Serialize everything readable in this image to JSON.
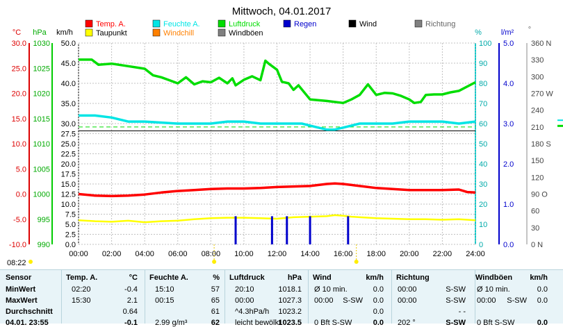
{
  "title": "Mittwoch, 04.01.2017",
  "time_now": "08:22",
  "legend": [
    {
      "label": "Temp. A.",
      "color": "#ff0000"
    },
    {
      "label": "Feuchte A.",
      "color": "#00e5e5"
    },
    {
      "label": "Luftdruck",
      "color": "#00dd00"
    },
    {
      "label": "Regen",
      "color": "#0000cc"
    },
    {
      "label": "Wind",
      "color": "#000000"
    },
    {
      "label": "Richtung",
      "color": "#808080"
    },
    {
      "label": "Taupunkt",
      "color": "#ffff00"
    },
    {
      "label": "Windchill",
      "color": "#ff8000"
    },
    {
      "label": "Windböen",
      "color": "#808080"
    }
  ],
  "axis_units": {
    "temp": "°C",
    "hpa": "hPa",
    "kmh": "km/h",
    "pct": "%",
    "rain": "l/m²",
    "dir": "°"
  },
  "chart_data": {
    "type": "line",
    "x_range": [
      "00:00",
      "24:00"
    ],
    "x_ticks": [
      "00:00",
      "02:00",
      "04:00",
      "06:00",
      "08:00",
      "10:00",
      "12:00",
      "14:00",
      "16:00",
      "18:00",
      "20:00",
      "22:00",
      "24:00"
    ],
    "axes": {
      "temp": {
        "unit": "°C",
        "range": [
          -10,
          30
        ],
        "ticks": [
          "30.0",
          "25.0",
          "20.0",
          "15.0",
          "10.0",
          "5.0",
          "0.0",
          "-5.0",
          "-10.0"
        ]
      },
      "pressure": {
        "unit": "hPa",
        "range": [
          990,
          1030
        ],
        "ticks": [
          "1030",
          "1025",
          "1020",
          "1015",
          "1010",
          "1005",
          "1000",
          "995",
          "990"
        ]
      },
      "wind": {
        "unit": "km/h",
        "range": [
          0,
          50
        ],
        "ticks": [
          "50.0",
          "45.0",
          "40.0",
          "35.0",
          "30.0",
          "27.5",
          "25.0",
          "22.5",
          "20.0",
          "17.5",
          "15.0",
          "12.5",
          "10.0",
          "7.5",
          "5.0",
          "2.5",
          "0.0"
        ]
      },
      "humidity": {
        "unit": "%",
        "range": [
          0,
          100
        ],
        "ticks": [
          "100",
          "90",
          "80",
          "70",
          "60",
          "50",
          "40",
          "30",
          "20",
          "10",
          "0"
        ]
      },
      "rain": {
        "unit": "l/m²",
        "range": [
          0,
          5
        ],
        "ticks": [
          "5.0",
          "4.0",
          "3.0",
          "2.0",
          "1.0",
          "0.0"
        ]
      },
      "direction": {
        "unit": "°",
        "range": [
          0,
          360
        ],
        "ticks": [
          "360 N",
          "330",
          "300",
          "270 W",
          "240",
          "210",
          "180 S",
          "150",
          "120",
          "90 O",
          "60",
          "30",
          "0 N"
        ]
      }
    },
    "series": [
      {
        "name": "Luftdruck",
        "axis": "pressure",
        "color": "#00dd00",
        "x": [
          0,
          0.8,
          1.2,
          2,
          3,
          4,
          4.5,
          5,
          5.5,
          6,
          6.5,
          7,
          7.5,
          8,
          8.5,
          9,
          9.3,
          9.5,
          10,
          10.5,
          11,
          11.3,
          11.5,
          12,
          12.3,
          12.7,
          13,
          13.3,
          14,
          15,
          16,
          16.5,
          17,
          17.5,
          18,
          18.5,
          19,
          19.5,
          20,
          20.3,
          20.7,
          21,
          21.5,
          22,
          22.5,
          23,
          24
        ],
        "y": [
          1026.7,
          1026.7,
          1025.7,
          1025.9,
          1025.4,
          1024.9,
          1023.6,
          1023.2,
          1022.6,
          1022.0,
          1023.2,
          1021.8,
          1022.4,
          1022.2,
          1023.1,
          1022.0,
          1023.0,
          1021.6,
          1022.7,
          1023.4,
          1022.6,
          1026.5,
          1025.9,
          1024.7,
          1022.3,
          1022.0,
          1020.7,
          1021.6,
          1018.8,
          1018.5,
          1018.1,
          1018.8,
          1019.7,
          1021.8,
          1019.7,
          1020.1,
          1020.0,
          1019.5,
          1018.8,
          1018.1,
          1018.3,
          1019.7,
          1019.8,
          1019.8,
          1020.2,
          1020.5,
          1022.2
        ]
      },
      {
        "name": "Feuchte A.",
        "axis": "humidity",
        "color": "#00e5e5",
        "x": [
          0,
          1,
          2,
          2.5,
          3,
          4,
          6,
          8,
          9,
          10,
          11,
          12,
          13,
          13.5,
          14,
          15,
          15.5,
          16,
          16.5,
          17,
          18,
          19,
          20,
          21,
          22,
          23,
          24
        ],
        "y": [
          64,
          64,
          63,
          62,
          61,
          61,
          60,
          60,
          61,
          61,
          60,
          60,
          60,
          60,
          59,
          57,
          57,
          58,
          59,
          60,
          60,
          60,
          61,
          61,
          61,
          60,
          61
        ]
      },
      {
        "name": "Temp. A.",
        "axis": "temp",
        "color": "#ff0000",
        "x": [
          0,
          1,
          2,
          3,
          4,
          5,
          6,
          7,
          8,
          9,
          10,
          11,
          12,
          13,
          14,
          15,
          15.5,
          16,
          16.5,
          17,
          18,
          19,
          20,
          21,
          22,
          23,
          23.5,
          24
        ],
        "y": [
          0.0,
          -0.3,
          -0.4,
          -0.3,
          -0.1,
          0.3,
          0.6,
          0.8,
          1.0,
          1.1,
          1.1,
          1.2,
          1.4,
          1.5,
          1.6,
          2.0,
          2.1,
          2.0,
          1.8,
          1.6,
          1.2,
          1.0,
          0.8,
          0.8,
          0.8,
          0.9,
          0.4,
          0.3
        ]
      },
      {
        "name": "Taupunkt",
        "axis": "temp",
        "color": "#ffff00",
        "x": [
          0,
          1,
          2,
          3,
          4,
          5,
          6,
          7,
          8,
          9,
          10,
          11,
          12,
          13,
          14,
          15,
          15.5,
          16,
          16.5,
          17,
          18,
          19,
          20,
          21,
          22,
          23,
          24
        ],
        "y": [
          -5.2,
          -5.4,
          -5.5,
          -5.3,
          -5.6,
          -5.4,
          -5.3,
          -5.0,
          -4.8,
          -4.7,
          -4.7,
          -4.8,
          -4.9,
          -4.6,
          -4.5,
          -4.4,
          -4.2,
          -4.3,
          -4.5,
          -4.6,
          -4.8,
          -4.9,
          -5.0,
          -5.0,
          -5.1,
          -5.0,
          -5.2
        ]
      }
    ],
    "rain": {
      "name": "Regen",
      "axis": "rain",
      "color": "#0000cc",
      "x": [
        9.5,
        11.7,
        12.6,
        14.0,
        16.3
      ],
      "y": [
        0.7,
        0.7,
        0.7,
        0.7,
        0.7
      ]
    },
    "direction_ref": {
      "axis": "direction",
      "value": 210,
      "color": "#00dd00"
    }
  },
  "table": {
    "sensor": {
      "head": "Sensor",
      "rows": [
        "MinWert",
        "MaxWert",
        "Durchschnitt",
        "04.01. 23:55"
      ]
    },
    "temp": {
      "head": "Temp. A.",
      "unit": "°C",
      "rows": [
        [
          "02:20",
          "-0.4"
        ],
        [
          "15:30",
          "2.1"
        ],
        [
          "",
          "0.64"
        ],
        [
          "",
          "-0.1"
        ]
      ]
    },
    "feuchte": {
      "head": "Feuchte A.",
      "unit": "%",
      "rows": [
        [
          "15:10",
          "57"
        ],
        [
          "00:15",
          "65"
        ],
        [
          "",
          "61"
        ],
        [
          "2.99 g/m³",
          "62"
        ]
      ]
    },
    "luftdruck": {
      "head": "Luftdruck",
      "unit": "hPa",
      "rows": [
        [
          "20:10",
          "1018.1"
        ],
        [
          "00:00",
          "1027.3"
        ],
        [
          "^4.3hPa/h",
          "1023.2"
        ],
        [
          "leicht bewölkt",
          "1023.5"
        ]
      ]
    },
    "wind": {
      "head": "Wind",
      "unit": "km/h",
      "rows": [
        [
          "Ø 10 min.",
          "",
          "0.0"
        ],
        [
          "00:00",
          "S-SW",
          "0.0"
        ],
        [
          "",
          "",
          "0.0"
        ],
        [
          "0 Bft S-SW",
          "",
          "0.0"
        ]
      ]
    },
    "richtung": {
      "head": "Richtung",
      "unit": "",
      "rows": [
        [
          "00:00",
          "S-SW"
        ],
        [
          "00:00",
          "S-SW"
        ],
        [
          "",
          "- -"
        ],
        [
          "202 °",
          "S-SW"
        ]
      ]
    },
    "windboeen": {
      "head": "Windböen",
      "unit": "km/h",
      "rows": [
        [
          "Ø 10 min.",
          "",
          "0.0"
        ],
        [
          "00:00",
          "S-SW",
          "0.0"
        ],
        [
          "",
          "",
          ""
        ],
        [
          "0 Bft S-SW",
          "",
          "0.0"
        ]
      ]
    }
  }
}
